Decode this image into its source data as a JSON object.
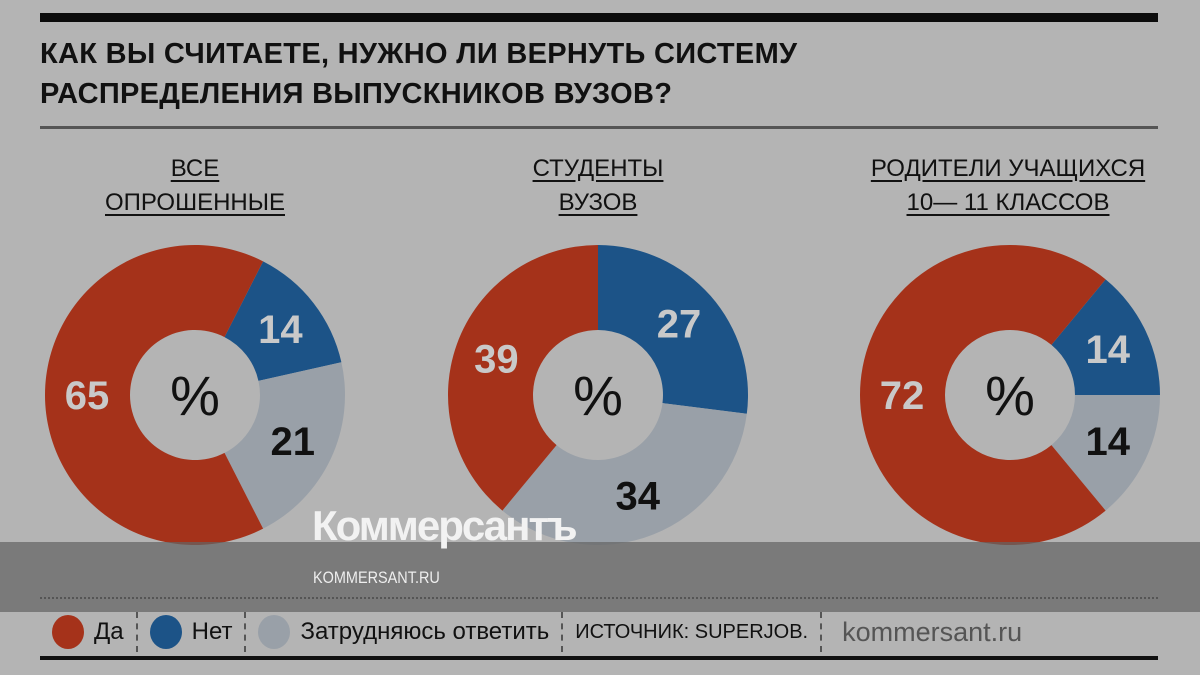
{
  "chart_data": {
    "type": "pie",
    "title": "КАК ВЫ СЧИТАЕТЕ, НУЖНО ЛИ ВЕРНУТЬ СИСТЕМУ РАСПРЕДЕЛЕНИЯ ВЫПУСКНИКОВ ВУЗОВ?",
    "title_lines": [
      "КАК ВЫ СЧИТАЕТЕ, НУЖНО ЛИ ВЕРНУТЬ СИСТЕМУ",
      "РАСПРЕДЕЛЕНИЯ ВЫПУСКНИКОВ ВУЗОВ?"
    ],
    "unit_label": "%",
    "categories": [
      "Да",
      "Нет",
      "Затрудняюсь ответить"
    ],
    "colors": {
      "Да": "#a5321a",
      "Нет": "#1c5387",
      "Затрудняюсь ответить": "#99a0a8"
    },
    "charts": [
      {
        "title_lines": [
          "ВСЕ",
          "ОПРОШЕННЫЕ"
        ],
        "values": [
          65,
          14,
          21
        ]
      },
      {
        "title_lines": [
          "СТУДЕНТЫ",
          "ВУЗОВ"
        ],
        "values": [
          39,
          27,
          34
        ]
      },
      {
        "title_lines": [
          "РОДИТЕЛИ УЧАЩИХСЯ",
          "10— 11 КЛАССОВ"
        ],
        "values": [
          72,
          14,
          14
        ]
      }
    ]
  },
  "legend": {
    "yes": "Да",
    "no": "Нет",
    "unsure": "Затрудняюсь ответить",
    "source": "ИСТОЧНИК: SUPERJOB.",
    "site": "kommersant.ru"
  },
  "watermark": {
    "logo": "Коммерсантъ",
    "url": "KOMMERSANT.RU"
  }
}
